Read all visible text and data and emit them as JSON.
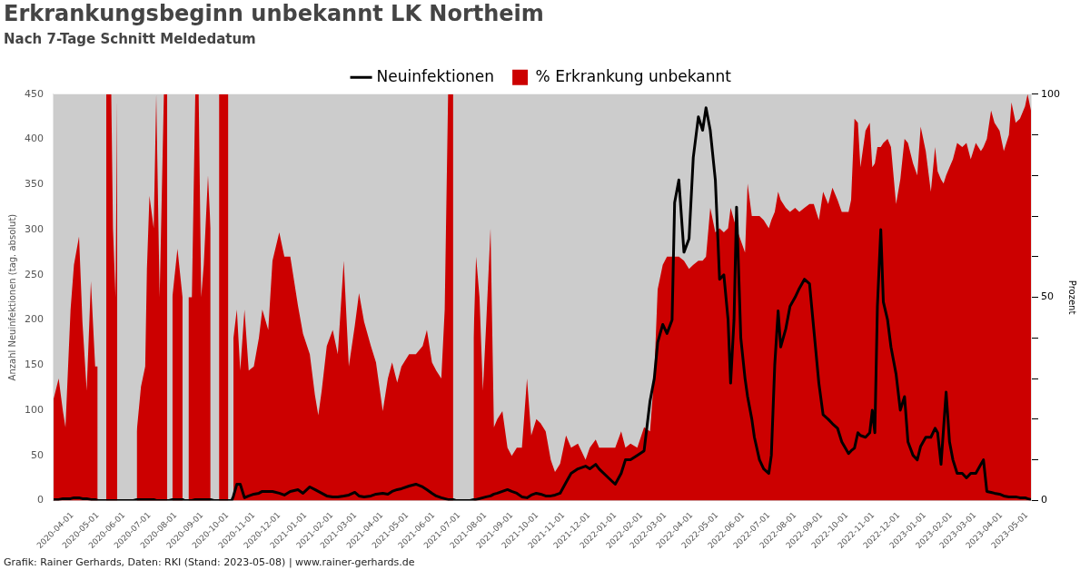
{
  "chart_data": {
    "type": "line",
    "title": "Erkrankungsbeginn unbekannt LK Northeim",
    "subtitle": "Nach 7-Tage Schnitt Meldedatum",
    "ylabel": "Anzahl Neuinfektionen (tag. absolut)",
    "y2label": "Prozent",
    "legend": "top",
    "annotations": [
      "Grafik: Rainer Gerhards, Daten: RKI (Stand: 2023-05-08) | www.rainer-gerhards.de"
    ],
    "xlim": [
      "2020-03-10",
      "2023-05-06"
    ],
    "xticks": [
      "2020-04-01",
      "2020-05-01",
      "2020-06-01",
      "2020-07-01",
      "2020-08-01",
      "2020-09-01",
      "2020-10-01",
      "2020-11-01",
      "2020-12-01",
      "2021-01-01",
      "2021-02-01",
      "2021-03-01",
      "2021-04-01",
      "2021-05-01",
      "2021-06-01",
      "2021-07-01",
      "2021-08-01",
      "2021-09-01",
      "2021-10-01",
      "2021-11-01",
      "2021-12-01",
      "2022-01-01",
      "2022-02-01",
      "2022-03-01",
      "2022-04-01",
      "2022-05-01",
      "2022-06-01",
      "2022-07-01",
      "2022-08-01",
      "2022-09-01",
      "2022-10-01",
      "2022-11-01",
      "2022-12-01",
      "2023-01-01",
      "2023-02-01",
      "2023-03-01",
      "2023-04-01",
      "2023-05-01"
    ],
    "ylim": [
      0,
      450
    ],
    "yticks": [
      0,
      50,
      100,
      150,
      200,
      250,
      300,
      350,
      400,
      450
    ],
    "y2lim": [
      0,
      100
    ],
    "y2ticks": [
      0,
      {
        "value": 10,
        "label": null
      },
      {
        "value": 20,
        "label": null
      },
      {
        "value": 30,
        "label": null
      },
      {
        "value": 40,
        "label": null
      },
      50,
      {
        "value": 60,
        "label": null
      },
      {
        "value": 70,
        "label": null
      },
      {
        "value": 80,
        "label": null
      },
      {
        "value": 90,
        "label": null
      },
      100
    ],
    "x": [
      "2020-03-10",
      "2020-03-16",
      "2020-03-21",
      "2020-03-24",
      "2020-03-30",
      "2020-04-03",
      "2020-04-09",
      "2020-04-13",
      "2020-04-18",
      "2020-04-23",
      "2020-04-28",
      "2020-05-01",
      "2020-05-03",
      "2020-05-09",
      "2020-05-11",
      "2020-05-17",
      "2020-05-19",
      "2020-05-22",
      "2020-05-24",
      "2020-05-27",
      "2020-06-12",
      "2020-06-16",
      "2020-06-21",
      "2020-06-26",
      "2020-06-28",
      "2020-07-01",
      "2020-07-06",
      "2020-07-09",
      "2020-07-13",
      "2020-07-18",
      "2020-07-22",
      "2020-07-24",
      "2020-07-28",
      "2020-08-03",
      "2020-08-09",
      "2020-08-11",
      "2020-08-16",
      "2020-08-20",
      "2020-08-24",
      "2020-08-28",
      "2020-08-31",
      "2020-09-03",
      "2020-09-08",
      "2020-09-11",
      "2020-09-15",
      "2020-09-19",
      "2020-09-21",
      "2020-10-02",
      "2020-10-06",
      "2020-10-08",
      "2020-10-12",
      "2020-10-16",
      "2020-10-21",
      "2020-10-26",
      "2020-11-01",
      "2020-11-07",
      "2020-11-11",
      "2020-11-18",
      "2020-11-23",
      "2020-12-01",
      "2020-12-07",
      "2020-12-14",
      "2020-12-23",
      "2020-12-29",
      "2021-01-06",
      "2021-01-12",
      "2021-01-16",
      "2021-01-20",
      "2021-01-26",
      "2021-02-02",
      "2021-02-08",
      "2021-02-15",
      "2021-02-21",
      "2021-02-28",
      "2021-03-05",
      "2021-03-11",
      "2021-03-19",
      "2021-03-25",
      "2021-04-02",
      "2021-04-08",
      "2021-04-13",
      "2021-04-19",
      "2021-04-24",
      "2021-05-03",
      "2021-05-11",
      "2021-05-19",
      "2021-05-24",
      "2021-05-30",
      "2021-06-04",
      "2021-06-10",
      "2021-06-14",
      "2021-06-18",
      "2021-06-24",
      "2021-06-27",
      "2021-07-14",
      "2021-07-18",
      "2021-07-21",
      "2021-07-25",
      "2021-07-29",
      "2021-08-02",
      "2021-08-07",
      "2021-08-11",
      "2021-08-15",
      "2021-08-21",
      "2021-08-27",
      "2021-09-01",
      "2021-09-07",
      "2021-09-13",
      "2021-09-19",
      "2021-09-24",
      "2021-09-30",
      "2021-10-05",
      "2021-10-11",
      "2021-10-17",
      "2021-10-22",
      "2021-10-28",
      "2021-11-04",
      "2021-11-10",
      "2021-11-18",
      "2021-11-27",
      "2021-12-02",
      "2021-12-09",
      "2021-12-13",
      "2021-12-24",
      "2022-01-01",
      "2022-01-08",
      "2022-01-13",
      "2022-01-19",
      "2022-01-27",
      "2022-02-04",
      "2022-02-11",
      "2022-02-16",
      "2022-02-20",
      "2022-02-26",
      "2022-03-03",
      "2022-03-09",
      "2022-03-12",
      "2022-03-17",
      "2022-03-23",
      "2022-03-29",
      "2022-04-03",
      "2022-04-09",
      "2022-04-14",
      "2022-04-18",
      "2022-04-23",
      "2022-04-29",
      "2022-05-04",
      "2022-05-09",
      "2022-05-14",
      "2022-05-17",
      "2022-05-21",
      "2022-05-24",
      "2022-05-29",
      "2022-06-03",
      "2022-06-06",
      "2022-06-11",
      "2022-06-14",
      "2022-06-20",
      "2022-06-25",
      "2022-07-01",
      "2022-07-04",
      "2022-07-08",
      "2022-07-12",
      "2022-07-15",
      "2022-07-21",
      "2022-07-26",
      "2022-08-01",
      "2022-08-06",
      "2022-08-12",
      "2022-08-18",
      "2022-08-23",
      "2022-08-29",
      "2022-09-03",
      "2022-09-09",
      "2022-09-14",
      "2022-09-20",
      "2022-09-25",
      "2022-10-03",
      "2022-10-06",
      "2022-10-10",
      "2022-10-14",
      "2022-10-17",
      "2022-10-23",
      "2022-10-28",
      "2022-10-31",
      "2022-11-03",
      "2022-11-06",
      "2022-11-10",
      "2022-11-13",
      "2022-11-18",
      "2022-11-22",
      "2022-11-28",
      "2022-12-03",
      "2022-12-08",
      "2022-12-12",
      "2022-12-18",
      "2022-12-23",
      "2022-12-27",
      "2023-01-02",
      "2023-01-08",
      "2023-01-13",
      "2023-01-16",
      "2023-01-20",
      "2023-01-23",
      "2023-01-26",
      "2023-01-30",
      "2023-02-03",
      "2023-02-08",
      "2023-02-14",
      "2023-02-19",
      "2023-02-24",
      "2023-03-02",
      "2023-03-08",
      "2023-03-11",
      "2023-03-15",
      "2023-03-20",
      "2023-03-24",
      "2023-03-30",
      "2023-04-04",
      "2023-04-10",
      "2023-04-13",
      "2023-04-18",
      "2023-04-23",
      "2023-04-29",
      "2023-05-02",
      "2023-05-06"
    ],
    "series": [
      {
        "name": "Neuinfektionen",
        "type": "line",
        "color": "#000000",
        "values": [
          1,
          1,
          2,
          2,
          2,
          3,
          3,
          2,
          2,
          1,
          1,
          0,
          0,
          0,
          0,
          0,
          0,
          0,
          0,
          0,
          0,
          1,
          1,
          1,
          1,
          1,
          1,
          0,
          0,
          0,
          0,
          0,
          1,
          1,
          1,
          0,
          0,
          0,
          1,
          1,
          1,
          1,
          1,
          1,
          0,
          0,
          0,
          0,
          0,
          5,
          18,
          18,
          3,
          5,
          7,
          8,
          10,
          10,
          10,
          8,
          6,
          10,
          12,
          8,
          15,
          12,
          10,
          8,
          5,
          4,
          4,
          5,
          6,
          9,
          5,
          4,
          5,
          7,
          8,
          7,
          10,
          12,
          13,
          16,
          18,
          15,
          12,
          8,
          5,
          3,
          2,
          1,
          1,
          0,
          0,
          1,
          1,
          2,
          3,
          4,
          5,
          7,
          8,
          10,
          12,
          10,
          8,
          4,
          3,
          6,
          8,
          7,
          5,
          5,
          6,
          8,
          20,
          30,
          35,
          38,
          35,
          40,
          35,
          25,
          18,
          30,
          45,
          45,
          50,
          55,
          110,
          135,
          175,
          195,
          185,
          200,
          330,
          355,
          275,
          290,
          380,
          425,
          410,
          435,
          410,
          355,
          245,
          250,
          200,
          130,
          200,
          325,
          180,
          135,
          115,
          90,
          70,
          45,
          35,
          30,
          50,
          150,
          210,
          170,
          190,
          215,
          225,
          235,
          245,
          240,
          190,
          130,
          95,
          90,
          85,
          80,
          65,
          52,
          55,
          58,
          75,
          72,
          70,
          75,
          100,
          75,
          215,
          300,
          220,
          200,
          170,
          140,
          100,
          115,
          65,
          50,
          45,
          60,
          70,
          70,
          80,
          75,
          40,
          80,
          120,
          65,
          45,
          30,
          30,
          25,
          30,
          30,
          40,
          45,
          10,
          9,
          8,
          7,
          5,
          4,
          4,
          4,
          3,
          3,
          2,
          1
        ]
      },
      {
        "name": "% Erkrankung unbekannt",
        "type": "area",
        "axis": "y2",
        "color": "#cc0000",
        "values": [
          25,
          30,
          22,
          18,
          47,
          58,
          65,
          44,
          27,
          54,
          33,
          33,
          null,
          null,
          100,
          100,
          67,
          50,
          100,
          null,
          null,
          17,
          28,
          33,
          57,
          75,
          67,
          100,
          50,
          100,
          100,
          null,
          50,
          62,
          50,
          null,
          50,
          50,
          100,
          100,
          50,
          58,
          80,
          67,
          null,
          null,
          100,
          100,
          null,
          40,
          47,
          32,
          47,
          32,
          33,
          40,
          47,
          42,
          59,
          66,
          60,
          60,
          48,
          41,
          36,
          26,
          21,
          27,
          38,
          42,
          36,
          59,
          33,
          43,
          51,
          44,
          38,
          34,
          22,
          30,
          34,
          29,
          33,
          36,
          36,
          38,
          42,
          34,
          32,
          30,
          47,
          100,
          100,
          null,
          null,
          40,
          60,
          50,
          27,
          44,
          67,
          18,
          20,
          22,
          13,
          11,
          13,
          13,
          30,
          16,
          20,
          19,
          17,
          10,
          7,
          9,
          16,
          13,
          14,
          10,
          13,
          15,
          13,
          13,
          13,
          17,
          13,
          14,
          13,
          18,
          17,
          31,
          52,
          58,
          60,
          60,
          60,
          60,
          59,
          57,
          58,
          59,
          59,
          60,
          72,
          66,
          67,
          66,
          67,
          72,
          69,
          67,
          64,
          61,
          78,
          70,
          70,
          70,
          69,
          67,
          69,
          71,
          76,
          74,
          72,
          71,
          72,
          71,
          72,
          73,
          73,
          69,
          76,
          73,
          77,
          74,
          71,
          71,
          74,
          94,
          93,
          82,
          91,
          93,
          82,
          83,
          87,
          87,
          88,
          89,
          87,
          73,
          79,
          89,
          88,
          83,
          80,
          92,
          86,
          76,
          87,
          81,
          79,
          78,
          80,
          82,
          84,
          88,
          87,
          88,
          84,
          88,
          86,
          87,
          89,
          96,
          93,
          91,
          86,
          90,
          98,
          93,
          94,
          97,
          100,
          96
        ]
      }
    ]
  }
}
